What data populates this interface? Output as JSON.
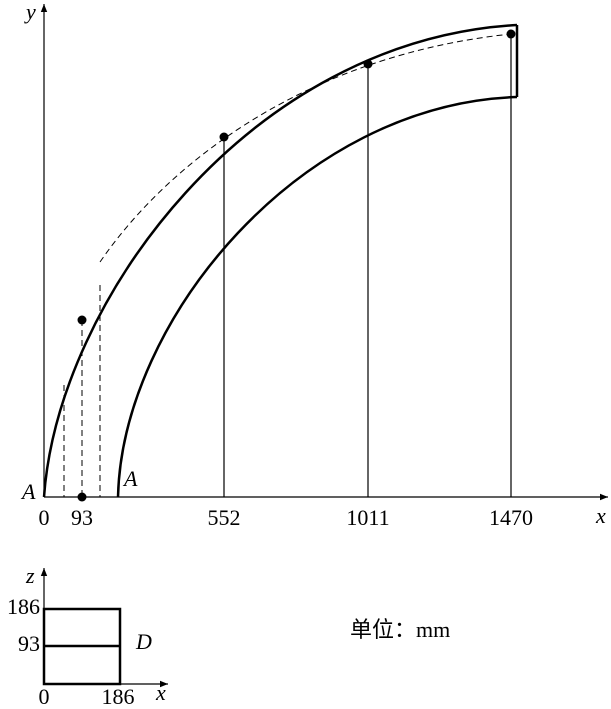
{
  "main_diagram": {
    "axis_labels": {
      "y": "y",
      "x": "x"
    },
    "point_labels": [
      "A",
      "A"
    ],
    "x_ticks": [
      0,
      93,
      552,
      1011,
      1470
    ]
  },
  "section": {
    "axis_labels": {
      "z": "z",
      "x": "x"
    },
    "z_ticks": [
      186,
      93
    ],
    "x_ticks": [
      0,
      186
    ],
    "label": "D"
  },
  "unit_note": "单位：mm"
}
